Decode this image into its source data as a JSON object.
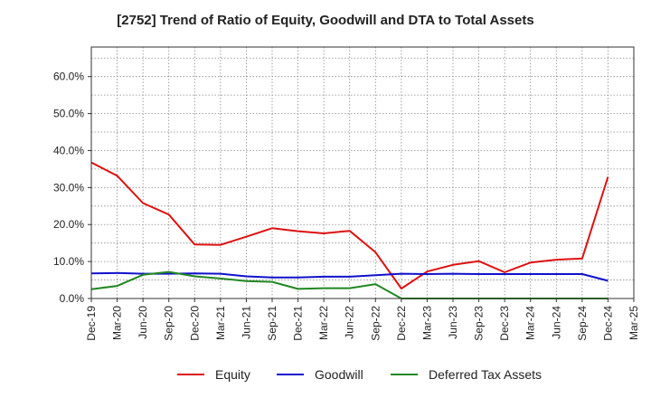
{
  "chart_data": {
    "type": "line",
    "title": "[2752]  Trend of Ratio of Equity, Goodwill and DTA to Total Assets",
    "xlabel": "",
    "ylabel": "",
    "ylim": [
      0,
      68
    ],
    "y_ticks": [
      0,
      10,
      20,
      30,
      40,
      50,
      60
    ],
    "y_tick_labels": [
      "0.0%",
      "10.0%",
      "20.0%",
      "30.0%",
      "40.0%",
      "50.0%",
      "60.0%"
    ],
    "grid": true,
    "legend_position": "bottom",
    "categories": [
      "Dec-19",
      "Mar-20",
      "Jun-20",
      "Sep-20",
      "Dec-20",
      "Mar-21",
      "Jun-21",
      "Sep-21",
      "Dec-21",
      "Mar-22",
      "Jun-22",
      "Sep-22",
      "Dec-22",
      "Mar-23",
      "Jun-23",
      "Sep-23",
      "Dec-23",
      "Mar-24",
      "Jun-24",
      "Sep-24",
      "Dec-24",
      "Mar-25"
    ],
    "series": [
      {
        "name": "Equity",
        "color": "#dd1111",
        "values": [
          36.8,
          33.2,
          25.8,
          22.7,
          14.6,
          14.5,
          16.7,
          19.0,
          18.2,
          17.6,
          18.3,
          12.5,
          2.7,
          7.3,
          9.1,
          10.1,
          7.1,
          9.7,
          10.5,
          10.8,
          32.9,
          null
        ]
      },
      {
        "name": "Goodwill",
        "color": "#1111cc",
        "values": [
          6.8,
          6.9,
          6.7,
          6.7,
          6.8,
          6.7,
          6.0,
          5.7,
          5.7,
          5.9,
          5.9,
          6.3,
          6.7,
          6.6,
          6.7,
          6.6,
          6.6,
          6.6,
          6.6,
          6.6,
          4.8,
          null
        ]
      },
      {
        "name": "Deferred Tax Assets",
        "color": "#228822",
        "values": [
          2.5,
          3.4,
          6.4,
          7.2,
          6.0,
          5.4,
          4.7,
          4.5,
          2.6,
          2.8,
          2.8,
          3.9,
          0.0,
          0.0,
          0.0,
          0.0,
          0.0,
          0.0,
          0.0,
          0.0,
          0.0,
          null
        ]
      }
    ]
  }
}
